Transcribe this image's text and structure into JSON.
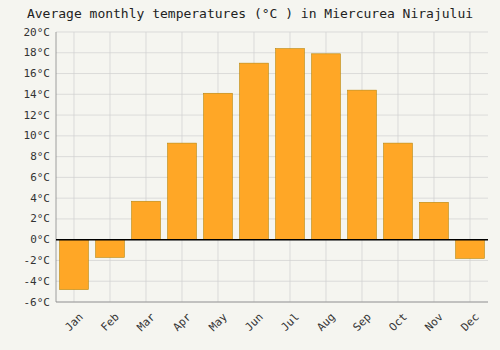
{
  "chart_data": {
    "type": "bar",
    "title": "Average monthly temperatures (°C ) in Miercurea Nirajului",
    "categories": [
      "Jan",
      "Feb",
      "Mar",
      "Apr",
      "May",
      "Jun",
      "Jul",
      "Aug",
      "Sep",
      "Oct",
      "Nov",
      "Dec"
    ],
    "values": [
      -4.8,
      -1.7,
      3.7,
      9.3,
      14.1,
      17.0,
      18.4,
      17.9,
      14.4,
      9.3,
      3.6,
      -1.8
    ],
    "color": "#FFA726",
    "ylim": [
      -6,
      20
    ],
    "yticks": [
      {
        "value": -6,
        "label": "-6°C"
      },
      {
        "value": -4,
        "label": "-4°C"
      },
      {
        "value": -2,
        "label": "-2°C"
      },
      {
        "value": 0,
        "label": "0°C"
      },
      {
        "value": 2,
        "label": "2°C"
      },
      {
        "value": 4,
        "label": "4°C"
      },
      {
        "value": 6,
        "label": "6°C"
      },
      {
        "value": 8,
        "label": "8°C"
      },
      {
        "value": 10,
        "label": "10°C"
      },
      {
        "value": 12,
        "label": "12°C"
      },
      {
        "value": 14,
        "label": "14°C"
      },
      {
        "value": 16,
        "label": "16°C"
      },
      {
        "value": 18,
        "label": "18°C"
      },
      {
        "value": 20,
        "label": "20°C"
      }
    ],
    "grid": true
  }
}
